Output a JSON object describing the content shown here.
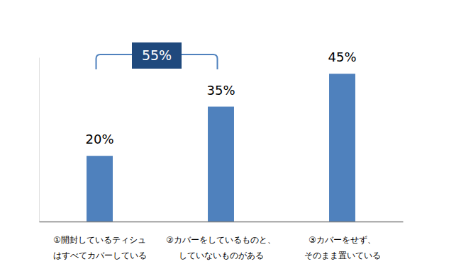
{
  "chart_data": {
    "type": "bar",
    "categories": [
      "①開封しているティシュ\nはすべてカバーしている",
      "②カバーをしているものと、\nしていないものがある",
      "③カバーをせず、\nそのまま置いている"
    ],
    "values": [
      20,
      35,
      45
    ],
    "value_labels": [
      "20%",
      "35%",
      "45%"
    ],
    "color": "#4f81bd",
    "ylim": [
      0,
      50
    ],
    "grid": false,
    "data_labels": true,
    "tick_labels": false,
    "annotations": [
      {
        "text": "55%",
        "span": [
          0,
          1
        ]
      }
    ]
  }
}
